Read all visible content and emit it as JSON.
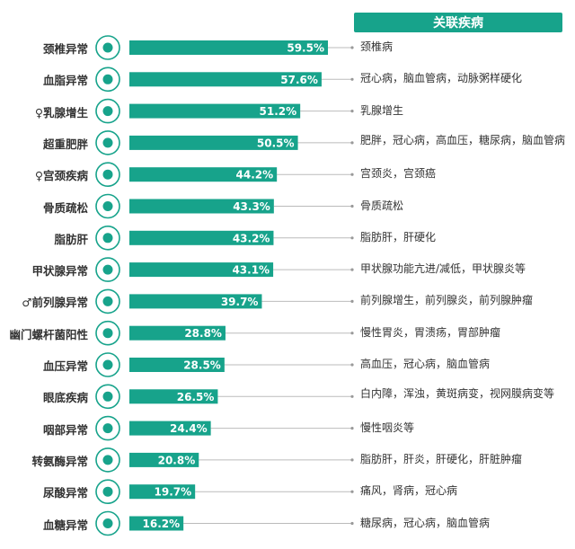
{
  "chart_data": {
    "type": "bar",
    "orientation": "horizontal",
    "related_header": "关联疾病",
    "categories": [
      "颈椎异常",
      "血脂异常",
      "♀乳腺增生",
      "超重肥胖",
      "♀宫颈疾病",
      "骨质疏松",
      "脂肪肝",
      "甲状腺异常",
      "♂前列腺异常",
      "幽门螺杆菌阳性",
      "血压异常",
      "眼底疾病",
      "咽部异常",
      "转氨酶异常",
      "尿酸异常",
      "血糖异常"
    ],
    "values": [
      59.5,
      57.6,
      51.2,
      50.5,
      44.2,
      43.3,
      43.2,
      43.1,
      39.7,
      28.8,
      28.5,
      26.5,
      24.4,
      20.8,
      19.7,
      16.2
    ],
    "value_labels": [
      "59.5%",
      "57.6%",
      "51.2%",
      "50.5%",
      "44.2%",
      "43.3%",
      "43.2%",
      "43.1%",
      "39.7%",
      "28.8%",
      "28.5%",
      "26.5%",
      "24.4%",
      "20.8%",
      "19.7%",
      "16.2%"
    ],
    "related_diseases": [
      "颈椎病",
      "冠心病，脑血管病，动脉粥样硬化",
      "乳腺增生",
      "肥胖，冠心病，高血压，糖尿病，脑血管病",
      "宫颈炎，宫颈癌",
      "骨质疏松",
      "脂肪肝，肝硬化",
      "甲状腺功能亢进/减低，甲状腺炎等",
      "前列腺增生，前列腺炎，前列腺肿瘤",
      "慢性胃炎，胃溃疡，胃部肿瘤",
      "高血压，冠心病，脑血管病",
      "白内障，浑浊，黄斑病变，视网膜病变等",
      "慢性咽炎等",
      "脂肪肝，肝炎，肝硬化，肝脏肿瘤",
      "痛风，肾病，冠心病",
      "糖尿病，冠心病，脑血管病"
    ],
    "icons": [
      "spine-icon",
      "test-tube-icon",
      "breast-icon",
      "obese-body-icon",
      "uterus-icon",
      "bone-joint-icon",
      "liver-icon",
      "thyroid-icon",
      "prostate-icon",
      "stomach-icon",
      "heart-icon",
      "eye-icon",
      "throat-icon",
      "liver-enzyme-icon",
      "syringe-icon",
      "blood-drop-icon"
    ],
    "xlim": [
      0,
      100
    ],
    "bar_color": "#17a38b",
    "icon_color": "#17a38b",
    "legend": "none",
    "grid": false
  }
}
